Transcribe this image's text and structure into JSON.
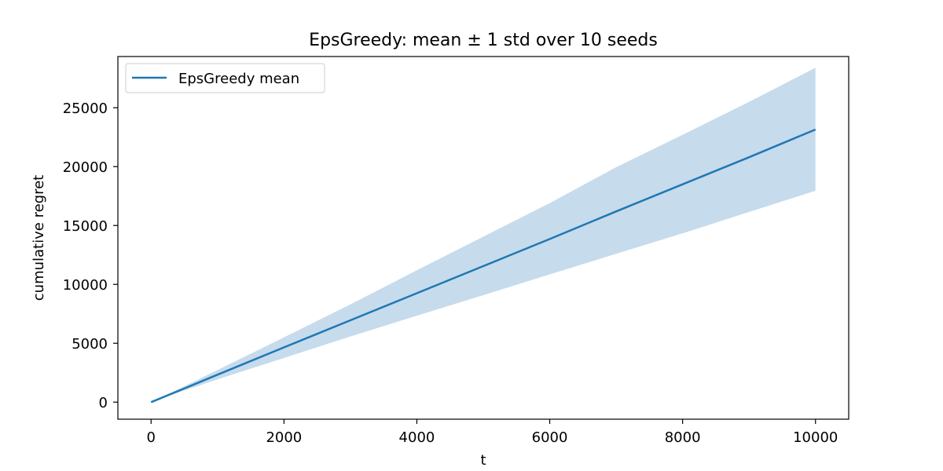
{
  "chart_data": {
    "type": "line",
    "title": "EpsGreedy: mean ± 1 std over 10 seeds",
    "xlabel": "t",
    "ylabel": "cumulative regret",
    "xlim": [
      -500,
      10500
    ],
    "ylim": [
      -1450,
      29350
    ],
    "xticks": [
      0,
      2000,
      4000,
      6000,
      8000,
      10000
    ],
    "yticks": [
      0,
      5000,
      10000,
      15000,
      20000,
      25000
    ],
    "grid": false,
    "legend_position": "upper-left",
    "colors": {
      "line": "#1f77b4",
      "band": "#c6dbec"
    },
    "series": [
      {
        "name": "EpsGreedy mean",
        "x": [
          0,
          500,
          1000,
          2000,
          3000,
          4000,
          5000,
          6000,
          7000,
          8000,
          9000,
          10000
        ],
        "mean": [
          0,
          1160,
          2330,
          4650,
          6950,
          9250,
          11550,
          13850,
          16200,
          18500,
          20800,
          23150
        ],
        "upper": [
          0,
          1340,
          2720,
          5500,
          8300,
          11200,
          14050,
          16900,
          19950,
          22700,
          25500,
          28400
        ],
        "lower": [
          0,
          990,
          1930,
          3750,
          5580,
          7340,
          9080,
          10850,
          12600,
          14330,
          16150,
          17950
        ]
      }
    ]
  }
}
